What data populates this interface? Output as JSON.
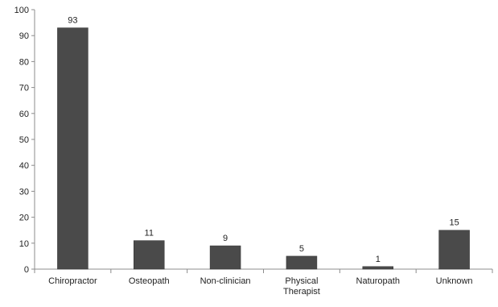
{
  "chart_data": {
    "type": "bar",
    "title": "",
    "xlabel": "",
    "ylabel": "",
    "categories": [
      "Chiropractor",
      "Osteopath",
      "Non-clinician",
      "Physical Therapist",
      "Naturopath",
      "Unknown"
    ],
    "category_labels": [
      [
        "Chiropractor"
      ],
      [
        "Osteopath"
      ],
      [
        "Non-clinician"
      ],
      [
        "Physical",
        "Therapist"
      ],
      [
        "Naturopath"
      ],
      [
        "Unknown"
      ]
    ],
    "values": [
      93,
      11,
      9,
      5,
      1,
      15
    ],
    "data_labels": [
      "93",
      "11",
      "9",
      "5",
      "1",
      "15"
    ],
    "ylim": [
      0,
      100
    ],
    "yticks": [
      0,
      10,
      20,
      30,
      40,
      50,
      60,
      70,
      80,
      90,
      100
    ],
    "grid": false,
    "legend": "none",
    "bar_color": "#4a4a4a",
    "axis_color": "#8c8c8c"
  }
}
